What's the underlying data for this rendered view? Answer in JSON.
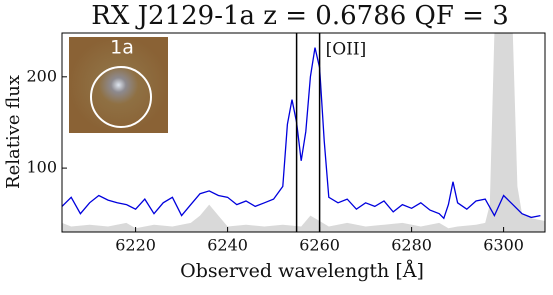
{
  "chart_data": {
    "type": "line",
    "title": "RX J2129-1a  z = 0.6786    QF = 3",
    "xlabel": "Observed wavelength  [Å]",
    "ylabel": "Relative flux",
    "inset_label": "1a",
    "annotation": "[OII]",
    "xlim": [
      6204,
      6309
    ],
    "ylim": [
      30,
      248
    ],
    "xticks": [
      6220,
      6240,
      6260,
      6280,
      6300
    ],
    "yticks": [
      100,
      200
    ],
    "vlines": [
      6255,
      6260
    ],
    "series": [
      {
        "color": "#0000dd",
        "x": [
          6204,
          6206,
          6208,
          6210,
          6212,
          6214,
          6216,
          6218,
          6220,
          6222,
          6224,
          6226,
          6228,
          6230,
          6232,
          6234,
          6236,
          6238,
          6240,
          6242,
          6244,
          6246,
          6248,
          6250,
          6252,
          6253,
          6254,
          6255,
          6256,
          6257,
          6258,
          6259,
          6260,
          6261,
          6262,
          6264,
          6266,
          6268,
          6270,
          6272,
          6274,
          6276,
          6278,
          6280,
          6282,
          6284,
          6286,
          6287,
          6288,
          6289,
          6290,
          6292,
          6294,
          6296,
          6298,
          6300,
          6302,
          6304,
          6306,
          6308
        ],
        "values": [
          58,
          68,
          50,
          62,
          70,
          65,
          62,
          60,
          55,
          66,
          50,
          62,
          68,
          48,
          60,
          72,
          75,
          70,
          68,
          60,
          64,
          58,
          62,
          66,
          80,
          148,
          175,
          150,
          108,
          140,
          200,
          232,
          210,
          130,
          68,
          62,
          66,
          55,
          62,
          58,
          64,
          52,
          60,
          56,
          62,
          54,
          50,
          45,
          60,
          85,
          62,
          55,
          64,
          66,
          48,
          70,
          60,
          50,
          46,
          48
        ]
      },
      {
        "color": "#d9d9d9",
        "fill": true,
        "x": [
          6204,
          6206,
          6210,
          6214,
          6218,
          6220,
          6224,
          6228,
          6232,
          6234,
          6236,
          6238,
          6240,
          6244,
          6248,
          6252,
          6256,
          6258,
          6260,
          6262,
          6266,
          6270,
          6274,
          6278,
          6282,
          6286,
          6288,
          6290,
          6294,
          6296,
          6297,
          6298,
          6302,
          6303,
          6304,
          6306,
          6309
        ],
        "values": [
          40,
          36,
          38,
          36,
          40,
          34,
          38,
          36,
          40,
          48,
          60,
          48,
          36,
          38,
          36,
          38,
          36,
          48,
          42,
          36,
          40,
          36,
          38,
          40,
          36,
          40,
          34,
          36,
          38,
          40,
          60,
          248,
          248,
          80,
          50,
          45,
          42
        ]
      }
    ]
  }
}
